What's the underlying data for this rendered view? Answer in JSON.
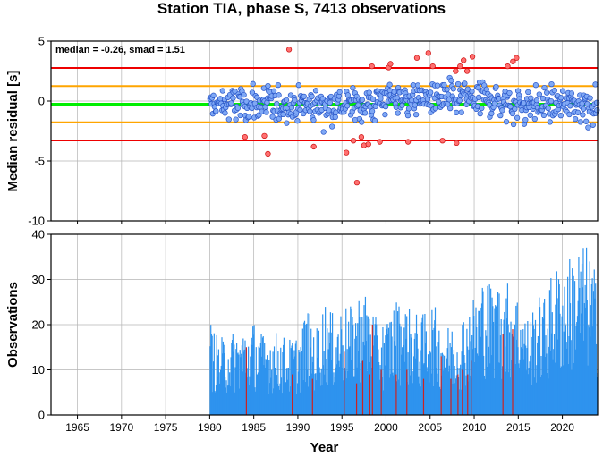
{
  "title": "Station TIA, phase S, 7413 observations",
  "chart_data": [
    {
      "type": "scatter",
      "ylabel": "Median residual [s]",
      "annotation": "median = -0.26, smad = 1.51",
      "xlim": [
        1962,
        2024
      ],
      "ylim": [
        -10,
        5
      ],
      "yticks": [
        -10,
        -5,
        0,
        5
      ],
      "grid": true,
      "reference_lines": [
        {
          "value": -0.26,
          "color": "#00ee00",
          "role": "median"
        },
        {
          "value": 1.25,
          "color": "#ffa500",
          "role": "+1 smad"
        },
        {
          "value": -1.77,
          "color": "#ffa500",
          "role": "-1 smad"
        },
        {
          "value": 2.76,
          "color": "#ee0000",
          "role": "+2 smad"
        },
        {
          "value": -3.28,
          "color": "#ee0000",
          "role": "-2 smad"
        }
      ],
      "x_range_points": [
        1980.0,
        2024.0
      ],
      "outliers": [
        {
          "x": 1984.0,
          "y": -3.0
        },
        {
          "x": 1986.6,
          "y": -4.4
        },
        {
          "x": 1986.2,
          "y": -2.9
        },
        {
          "x": 1989.0,
          "y": 4.3
        },
        {
          "x": 1991.8,
          "y": -3.8
        },
        {
          "x": 1995.5,
          "y": -4.3
        },
        {
          "x": 1996.3,
          "y": -3.3
        },
        {
          "x": 1996.7,
          "y": -6.8
        },
        {
          "x": 1997.2,
          "y": -3.0
        },
        {
          "x": 1997.5,
          "y": -3.7
        },
        {
          "x": 1998.0,
          "y": -3.6
        },
        {
          "x": 1998.4,
          "y": 2.9
        },
        {
          "x": 1999.3,
          "y": -3.4
        },
        {
          "x": 2000.3,
          "y": 2.8
        },
        {
          "x": 2000.5,
          "y": 3.1
        },
        {
          "x": 2002.5,
          "y": -3.4
        },
        {
          "x": 2003.5,
          "y": 3.6
        },
        {
          "x": 2004.8,
          "y": 4.0
        },
        {
          "x": 2005.3,
          "y": 2.9
        },
        {
          "x": 2006.4,
          "y": -3.3
        },
        {
          "x": 2007.9,
          "y": 2.5
        },
        {
          "x": 2008.0,
          "y": -3.5
        },
        {
          "x": 2008.4,
          "y": 2.9
        },
        {
          "x": 2008.8,
          "y": 3.4
        },
        {
          "x": 2009.2,
          "y": 2.5
        },
        {
          "x": 2009.8,
          "y": 3.7
        },
        {
          "x": 2013.8,
          "y": 2.9
        },
        {
          "x": 2014.4,
          "y": 3.3
        },
        {
          "x": 2014.8,
          "y": 3.6
        }
      ]
    },
    {
      "type": "bar",
      "xlabel": "Year",
      "ylabel": "Observations",
      "xlim": [
        1962,
        2024
      ],
      "ylim": [
        0,
        40
      ],
      "xticks": [
        1965,
        1970,
        1975,
        1980,
        1985,
        1990,
        1995,
        2000,
        2005,
        2010,
        2015,
        2020
      ],
      "yticks": [
        0,
        10,
        20,
        30,
        40
      ],
      "grid": true,
      "series": [
        {
          "color": "#2e93ee",
          "x_range": [
            1980.0,
            2024.0
          ],
          "anchor_max": [
            {
              "x": 1980,
              "y": 21
            },
            {
              "x": 1981,
              "y": 17
            },
            {
              "x": 1982,
              "y": 18
            },
            {
              "x": 1983,
              "y": 19
            },
            {
              "x": 1984,
              "y": 20
            },
            {
              "x": 1985,
              "y": 21
            },
            {
              "x": 1986,
              "y": 18
            },
            {
              "x": 1987,
              "y": 19
            },
            {
              "x": 1988,
              "y": 18
            },
            {
              "x": 1989,
              "y": 17
            },
            {
              "x": 1990,
              "y": 18
            },
            {
              "x": 1991,
              "y": 24
            },
            {
              "x": 1992,
              "y": 19
            },
            {
              "x": 1993,
              "y": 26
            },
            {
              "x": 1994,
              "y": 22
            },
            {
              "x": 1995,
              "y": 25
            },
            {
              "x": 1996,
              "y": 24
            },
            {
              "x": 1997,
              "y": 28
            },
            {
              "x": 1998,
              "y": 27
            },
            {
              "x": 1999,
              "y": 20
            },
            {
              "x": 2000,
              "y": 22
            },
            {
              "x": 2001,
              "y": 26
            },
            {
              "x": 2002,
              "y": 25
            },
            {
              "x": 2003,
              "y": 23
            },
            {
              "x": 2004,
              "y": 22
            },
            {
              "x": 2005,
              "y": 26
            },
            {
              "x": 2006,
              "y": 22
            },
            {
              "x": 2007,
              "y": 20
            },
            {
              "x": 2008,
              "y": 21
            },
            {
              "x": 2009,
              "y": 24
            },
            {
              "x": 2010,
              "y": 27
            },
            {
              "x": 2011,
              "y": 32
            },
            {
              "x": 2012,
              "y": 29
            },
            {
              "x": 2013,
              "y": 30
            },
            {
              "x": 2014,
              "y": 30
            },
            {
              "x": 2015,
              "y": 27
            },
            {
              "x": 2016,
              "y": 22
            },
            {
              "x": 2017,
              "y": 26
            },
            {
              "x": 2018,
              "y": 27
            },
            {
              "x": 2019,
              "y": 33
            },
            {
              "x": 2020,
              "y": 34
            },
            {
              "x": 2021,
              "y": 36
            },
            {
              "x": 2022,
              "y": 39
            },
            {
              "x": 2023,
              "y": 37
            },
            {
              "x": 2024,
              "y": 30
            }
          ]
        },
        {
          "color": "#cc2222",
          "highlight_bars": [
            {
              "x": 1984.1,
              "y": 15
            },
            {
              "x": 1989.3,
              "y": 9
            },
            {
              "x": 1991.6,
              "y": 8
            },
            {
              "x": 1995.2,
              "y": 14
            },
            {
              "x": 1996.6,
              "y": 7
            },
            {
              "x": 1997.3,
              "y": 12
            },
            {
              "x": 1998.1,
              "y": 9
            },
            {
              "x": 1998.4,
              "y": 20
            },
            {
              "x": 1999.4,
              "y": 10
            },
            {
              "x": 2001.1,
              "y": 9
            },
            {
              "x": 2002.3,
              "y": 10
            },
            {
              "x": 2004.2,
              "y": 8
            },
            {
              "x": 2006.2,
              "y": 13
            },
            {
              "x": 2007.3,
              "y": 8
            },
            {
              "x": 2008.1,
              "y": 9
            },
            {
              "x": 2008.6,
              "y": 10
            },
            {
              "x": 2009.2,
              "y": 9
            },
            {
              "x": 2009.6,
              "y": 12
            },
            {
              "x": 2013.2,
              "y": 18
            },
            {
              "x": 2014.3,
              "y": 19
            }
          ]
        }
      ]
    }
  ]
}
